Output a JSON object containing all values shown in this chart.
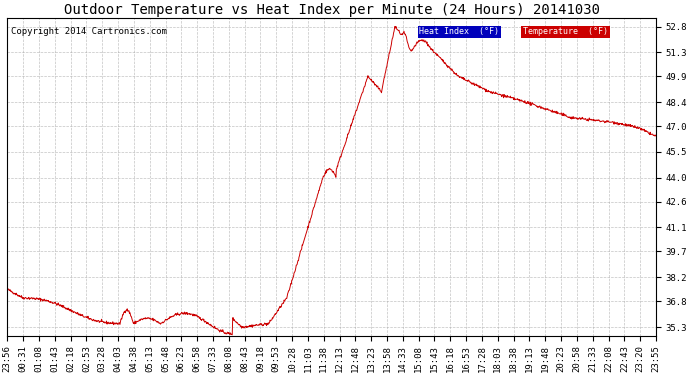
{
  "title": "Outdoor Temperature vs Heat Index per Minute (24 Hours) 20141030",
  "copyright": "Copyright 2014 Cartronics.com",
  "ylabel_right_ticks": [
    35.3,
    36.8,
    38.2,
    39.7,
    41.1,
    42.6,
    44.0,
    45.5,
    47.0,
    48.4,
    49.9,
    51.3,
    52.8
  ],
  "ylim": [
    34.8,
    53.3
  ],
  "xlim": [
    0,
    1439
  ],
  "line_color": "#cc0000",
  "bg_color": "#ffffff",
  "grid_color": "#aaaaaa",
  "legend_heat_bg": "#0000bb",
  "legend_temp_bg": "#cc0000",
  "legend_heat_label": "Heat Index  (°F)",
  "legend_temp_label": "Temperature  (°F)",
  "x_tick_labels": [
    "23:56",
    "00:31",
    "01:08",
    "01:43",
    "02:18",
    "02:53",
    "03:28",
    "04:03",
    "04:38",
    "05:13",
    "05:48",
    "06:23",
    "06:58",
    "07:33",
    "08:08",
    "08:43",
    "09:18",
    "09:53",
    "10:28",
    "11:03",
    "11:38",
    "12:13",
    "12:48",
    "13:23",
    "13:58",
    "14:33",
    "15:08",
    "15:43",
    "16:18",
    "16:53",
    "17:28",
    "18:03",
    "18:38",
    "19:13",
    "19:48",
    "20:23",
    "20:58",
    "21:33",
    "22:08",
    "22:43",
    "23:20",
    "23:55"
  ],
  "title_fontsize": 10,
  "tick_fontsize": 6.5,
  "copyright_fontsize": 6.5
}
